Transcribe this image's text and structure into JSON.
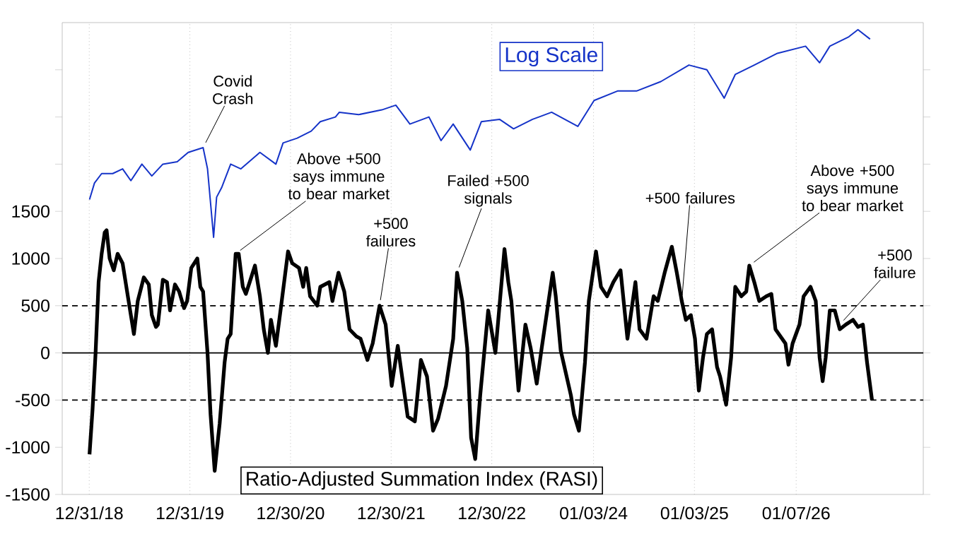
{
  "chart_data": {
    "type": "line",
    "title": "Ratio-Adjusted Summation Index (RASI)",
    "xlim": [
      "2018-09-24",
      "2027-04-13"
    ],
    "ylim": [
      -1500,
      3500
    ],
    "xticks": [
      {
        "value": "2018-12-31",
        "label": "12/31/18"
      },
      {
        "value": "2019-12-31",
        "label": "12/31/19"
      },
      {
        "value": "2020-12-30",
        "label": "12/30/20"
      },
      {
        "value": "2021-12-30",
        "label": "12/30/21"
      },
      {
        "value": "2022-12-30",
        "label": "12/30/22"
      },
      {
        "value": "2024-01-03",
        "label": "01/03/24"
      },
      {
        "value": "2025-01-03",
        "label": "01/03/25"
      },
      {
        "value": "2026-01-07",
        "label": "01/07/26"
      }
    ],
    "yticks": [
      -1500,
      -1000,
      -500,
      0,
      500,
      1000,
      1500,
      {
        "value": 2000,
        "label": null
      },
      {
        "value": 2500,
        "label": null
      },
      {
        "value": 3000,
        "label": null
      }
    ],
    "grid": "x",
    "legend": false,
    "marker": "none",
    "ref_lines": [
      {
        "axis": "y",
        "value": 0,
        "color": "#000000",
        "line_style": "solid"
      },
      {
        "axis": "y",
        "value": 500,
        "color": "#000000",
        "line_style": "dashed"
      },
      {
        "axis": "y",
        "value": -500,
        "color": "#000000",
        "line_style": "dashed"
      }
    ],
    "annotations": [
      {
        "text": "Covid Crash",
        "x": "2020-02-17",
        "y": 2175
      },
      {
        "text": "Above +500 says immune to bear market",
        "x": "2020-06-14",
        "y": 1050
      },
      {
        "text": "+500 failures",
        "x": "2021-11-18",
        "y": 500
      },
      {
        "text": "Failed +500 signals",
        "x": "2022-08-26",
        "y": 850
      },
      {
        "text": "+500 failures",
        "x": "2024-11-18",
        "y": 550
      },
      {
        "text": "Above +500 says immune to bear market",
        "x": "2025-07-21",
        "y": 925
      },
      {
        "text": "+500 failure",
        "x": "2026-06-14",
        "y": 300
      }
    ],
    "series": [
      {
        "name": "Log Scale",
        "color": "#1533c8",
        "x": [
          "2019-01-01",
          "2019-01-19",
          "2019-02-14",
          "2019-03-26",
          "2019-05-01",
          "2019-05-31",
          "2019-07-10",
          "2019-08-15",
          "2019-09-24",
          "2019-11-15",
          "2019-12-25",
          "2020-02-17",
          "2020-03-04",
          "2020-03-26",
          "2020-04-06",
          "2020-04-24",
          "2020-05-27",
          "2020-07-03",
          "2020-09-10",
          "2020-11-07",
          "2020-12-03",
          "2021-01-23",
          "2021-03-15",
          "2021-04-17",
          "2021-06-11",
          "2021-06-25",
          "2021-09-03",
          "2021-11-26",
          "2022-01-16",
          "2022-03-08",
          "2022-05-16",
          "2022-06-29",
          "2022-08-12",
          "2022-10-13",
          "2022-11-22",
          "2023-01-27",
          "2023-03-19",
          "2023-05-27",
          "2023-08-04",
          "2023-11-07",
          "2024-01-05",
          "2024-03-30",
          "2024-06-07",
          "2024-09-03",
          "2024-12-14",
          "2025-02-17",
          "2025-04-21",
          "2025-05-31",
          "2025-08-08",
          "2025-10-31",
          "2026-02-10",
          "2026-04-02",
          "2026-05-09",
          "2026-07-17",
          "2026-08-19",
          "2026-10-02"
        ],
        "values": [
          1625,
          1800,
          1900,
          1900,
          1950,
          1825,
          2000,
          1875,
          2000,
          2025,
          2125,
          2175,
          1950,
          1225,
          1650,
          1750,
          2000,
          1950,
          2125,
          2000,
          2225,
          2275,
          2350,
          2450,
          2500,
          2550,
          2525,
          2575,
          2625,
          2425,
          2500,
          2250,
          2425,
          2150,
          2450,
          2475,
          2375,
          2475,
          2550,
          2400,
          2675,
          2775,
          2775,
          2875,
          3050,
          3000,
          2700,
          2950,
          3050,
          3175,
          3250,
          3075,
          3250,
          3350,
          3425,
          3325
        ]
      },
      {
        "color": "#000000",
        "x": [
          "2019-01-01",
          "2019-01-12",
          "2019-01-23",
          "2019-02-03",
          "2019-02-14",
          "2019-02-25",
          "2019-03-04",
          "2019-03-15",
          "2019-03-30",
          "2019-04-13",
          "2019-05-01",
          "2019-05-20",
          "2019-06-11",
          "2019-06-25",
          "2019-07-17",
          "2019-08-04",
          "2019-08-15",
          "2019-08-30",
          "2019-09-06",
          "2019-09-24",
          "2019-10-09",
          "2019-10-20",
          "2019-11-07",
          "2019-11-22",
          "2019-12-10",
          "2019-12-21",
          "2020-01-05",
          "2020-01-27",
          "2020-02-07",
          "2020-02-17",
          "2020-03-04",
          "2020-03-15",
          "2020-03-30",
          "2020-04-06",
          "2020-04-17",
          "2020-05-05",
          "2020-05-16",
          "2020-05-27",
          "2020-06-14",
          "2020-06-25",
          "2020-07-10",
          "2020-07-21",
          "2020-08-04",
          "2020-08-23",
          "2020-09-10",
          "2020-09-24",
          "2020-10-09",
          "2020-10-20",
          "2020-11-07",
          "2020-11-26",
          "2020-12-21",
          "2021-01-05",
          "2021-01-30",
          "2021-02-14",
          "2021-02-25",
          "2021-03-11",
          "2021-04-06",
          "2021-04-17",
          "2021-05-20",
          "2021-05-31",
          "2021-06-22",
          "2021-07-13",
          "2021-08-01",
          "2021-08-26",
          "2021-09-10",
          "2021-10-05",
          "2021-10-24",
          "2021-11-18",
          "2021-12-10",
          "2022-01-01",
          "2022-01-23",
          "2022-02-10",
          "2022-02-28",
          "2022-03-26",
          "2022-04-17",
          "2022-05-09",
          "2022-05-31",
          "2022-06-18",
          "2022-07-17",
          "2022-08-12",
          "2022-08-26",
          "2022-09-14",
          "2022-10-02",
          "2022-10-16",
          "2022-10-31",
          "2022-11-18",
          "2022-12-17",
          "2023-01-12",
          "2023-01-30",
          "2023-02-14",
          "2023-02-28",
          "2023-03-11",
          "2023-04-06",
          "2023-05-01",
          "2023-05-20",
          "2023-06-11",
          "2023-06-29",
          "2023-08-08",
          "2023-08-19",
          "2023-09-06",
          "2023-10-13",
          "2023-10-24",
          "2023-11-11",
          "2023-12-03",
          "2023-12-17",
          "2024-01-12",
          "2024-01-30",
          "2024-02-21",
          "2024-03-15",
          "2024-04-10",
          "2024-05-05",
          "2024-06-03",
          "2024-06-18",
          "2024-07-13",
          "2024-08-08",
          "2024-08-23",
          "2024-09-17",
          "2024-10-13",
          "2024-10-31",
          "2024-11-18",
          "2024-12-03",
          "2024-12-21",
          "2025-01-05",
          "2025-01-19",
          "2025-02-03",
          "2025-02-17",
          "2025-03-08",
          "2025-03-26",
          "2025-04-06",
          "2025-04-28",
          "2025-05-16",
          "2025-05-31",
          "2025-06-22",
          "2025-07-10",
          "2025-07-21",
          "2025-08-08",
          "2025-08-26",
          "2025-09-21",
          "2025-10-09",
          "2025-10-24",
          "2025-11-11",
          "2025-11-29",
          "2025-12-10",
          "2025-12-25",
          "2026-01-19",
          "2026-02-03",
          "2026-02-28",
          "2026-03-19",
          "2026-04-02",
          "2026-04-13",
          "2026-04-24",
          "2026-05-09",
          "2026-05-27",
          "2026-06-14",
          "2026-07-06",
          "2026-08-01",
          "2026-08-19",
          "2026-09-06",
          "2026-09-21",
          "2026-10-09"
        ],
        "values": [
          -1075,
          -600,
          0,
          750,
          1050,
          1275,
          1300,
          1000,
          875,
          1050,
          950,
          600,
          200,
          550,
          800,
          725,
          400,
          275,
          300,
          775,
          750,
          450,
          725,
          650,
          475,
          550,
          900,
          1000,
          700,
          650,
          0,
          -650,
          -1250,
          -1050,
          -750,
          -100,
          150,
          200,
          1050,
          1050,
          700,
          625,
          750,
          925,
          600,
          250,
          0,
          350,
          75,
          500,
          1075,
          950,
          900,
          700,
          900,
          600,
          500,
          700,
          750,
          550,
          850,
          650,
          250,
          175,
          150,
          -75,
          100,
          500,
          300,
          -350,
          75,
          -300,
          -675,
          -725,
          -75,
          -250,
          -825,
          -700,
          -350,
          150,
          850,
          550,
          50,
          -900,
          -1125,
          -450,
          450,
          0,
          600,
          1100,
          750,
          550,
          -400,
          300,
          50,
          -325,
          50,
          850,
          600,
          25,
          -450,
          -650,
          -825,
          -100,
          550,
          1075,
          700,
          600,
          750,
          875,
          150,
          750,
          250,
          150,
          600,
          550,
          850,
          1125,
          850,
          550,
          350,
          400,
          150,
          -400,
          -50,
          200,
          250,
          -150,
          -250,
          -550,
          -50,
          700,
          600,
          650,
          925,
          750,
          550,
          600,
          625,
          250,
          175,
          100,
          -125,
          100,
          300,
          600,
          700,
          550,
          -50,
          -300,
          -50,
          450,
          450,
          250,
          300,
          350,
          275,
          300,
          -100,
          -500
        ]
      }
    ]
  }
}
